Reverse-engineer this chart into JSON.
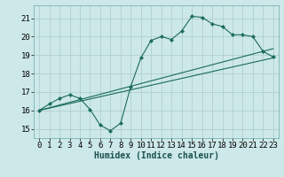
{
  "xlabel": "Humidex (Indice chaleur)",
  "background_color": "#cde8e8",
  "grid_color": "#b0d0d0",
  "line_color": "#1a6b5a",
  "xlim": [
    -0.5,
    23.5
  ],
  "ylim": [
    14.5,
    21.7
  ],
  "xticks": [
    0,
    1,
    2,
    3,
    4,
    5,
    6,
    7,
    8,
    9,
    10,
    11,
    12,
    13,
    14,
    15,
    16,
    17,
    18,
    19,
    20,
    21,
    22,
    23
  ],
  "yticks": [
    15,
    16,
    17,
    18,
    19,
    20,
    21
  ],
  "line1_x": [
    0,
    1,
    2,
    3,
    4,
    5,
    6,
    7,
    8,
    9,
    10,
    11,
    12,
    13,
    14,
    15,
    16,
    17,
    18,
    19,
    20,
    21,
    22,
    23
  ],
  "line1_y": [
    16.0,
    16.35,
    16.65,
    16.85,
    16.65,
    16.05,
    15.2,
    14.9,
    15.3,
    17.3,
    18.85,
    19.8,
    20.0,
    19.85,
    20.3,
    21.1,
    21.05,
    20.7,
    20.55,
    20.1,
    20.1,
    20.0,
    19.2,
    18.9
  ],
  "line2_x": [
    0,
    23
  ],
  "line2_y": [
    16.0,
    19.35
  ],
  "line3_x": [
    0,
    23
  ],
  "line3_y": [
    16.0,
    18.85
  ],
  "xlabel_fontsize": 7,
  "tick_fontsize": 6.5
}
